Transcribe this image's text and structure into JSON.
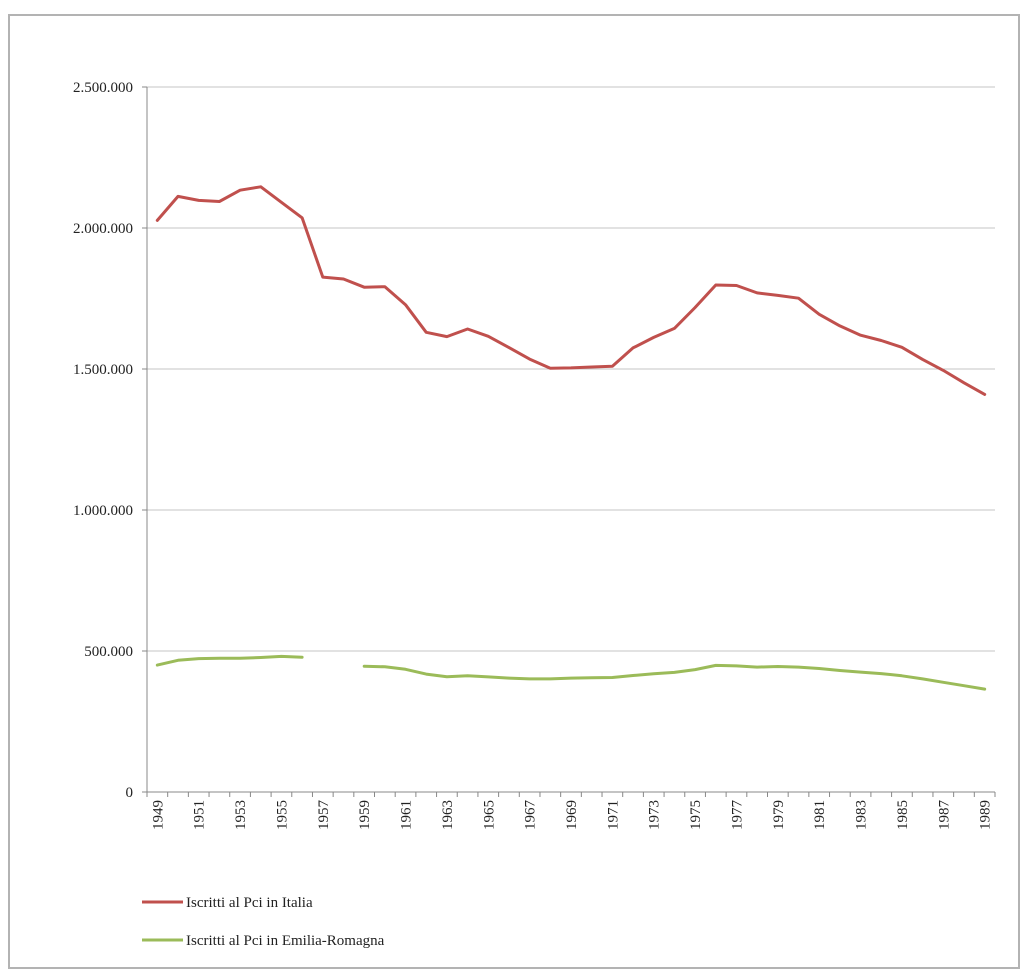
{
  "chart_data": {
    "type": "line",
    "title": "",
    "xlabel": "",
    "ylabel": "",
    "x": [
      1949,
      1950,
      1951,
      1952,
      1953,
      1954,
      1955,
      1956,
      1957,
      1958,
      1959,
      1960,
      1961,
      1962,
      1963,
      1964,
      1965,
      1966,
      1967,
      1968,
      1969,
      1970,
      1971,
      1972,
      1973,
      1974,
      1975,
      1976,
      1977,
      1978,
      1979,
      1980,
      1981,
      1982,
      1983,
      1984,
      1985,
      1986,
      1987,
      1988,
      1989
    ],
    "x_tick_labels": [
      "1949",
      "1951",
      "1953",
      "1955",
      "1957",
      "1959",
      "1961",
      "1963",
      "1965",
      "1967",
      "1969",
      "1971",
      "1973",
      "1975",
      "1977",
      "1979",
      "1981",
      "1983",
      "1985",
      "1987",
      "1989"
    ],
    "y_tick_labels": [
      "0",
      "500.000",
      "1.000.000",
      "1.500.000",
      "2.000.000",
      "2.500.000"
    ],
    "y_tick_values": [
      0,
      500000,
      1000000,
      1500000,
      2000000,
      2500000
    ],
    "ylim": [
      0,
      2500000
    ],
    "grid": "horizontal",
    "legend_position": "bottom-left",
    "series": [
      {
        "name": "Iscritti al Pci in Italia",
        "color": "#c0504d",
        "values": [
          2027000,
          2112000,
          2098000,
          2094000,
          2134000,
          2146000,
          2091000,
          2036000,
          1826000,
          1819000,
          1790000,
          1792000,
          1728000,
          1630000,
          1615000,
          1642000,
          1616000,
          1576000,
          1535000,
          1503000,
          1504000,
          1507000,
          1510000,
          1575000,
          1612000,
          1644000,
          1718000,
          1798000,
          1796000,
          1770000,
          1761000,
          1751000,
          1694000,
          1653000,
          1620000,
          1601000,
          1577000,
          1534000,
          1495000,
          1451000,
          1410000
        ]
      },
      {
        "name": "Iscritti al Pci in Emilia-Romagna",
        "color": "#9bbb59",
        "values": [
          450000,
          467000,
          473000,
          474000,
          474000,
          477000,
          481000,
          478000,
          null,
          null,
          446000,
          444000,
          435000,
          418000,
          409000,
          412000,
          408000,
          404000,
          401000,
          401000,
          404000,
          405000,
          406000,
          413000,
          419000,
          424000,
          434000,
          449000,
          447000,
          443000,
          445000,
          443000,
          438000,
          431000,
          425000,
          420000,
          412000,
          401000,
          389000,
          377000,
          365000
        ]
      }
    ]
  }
}
